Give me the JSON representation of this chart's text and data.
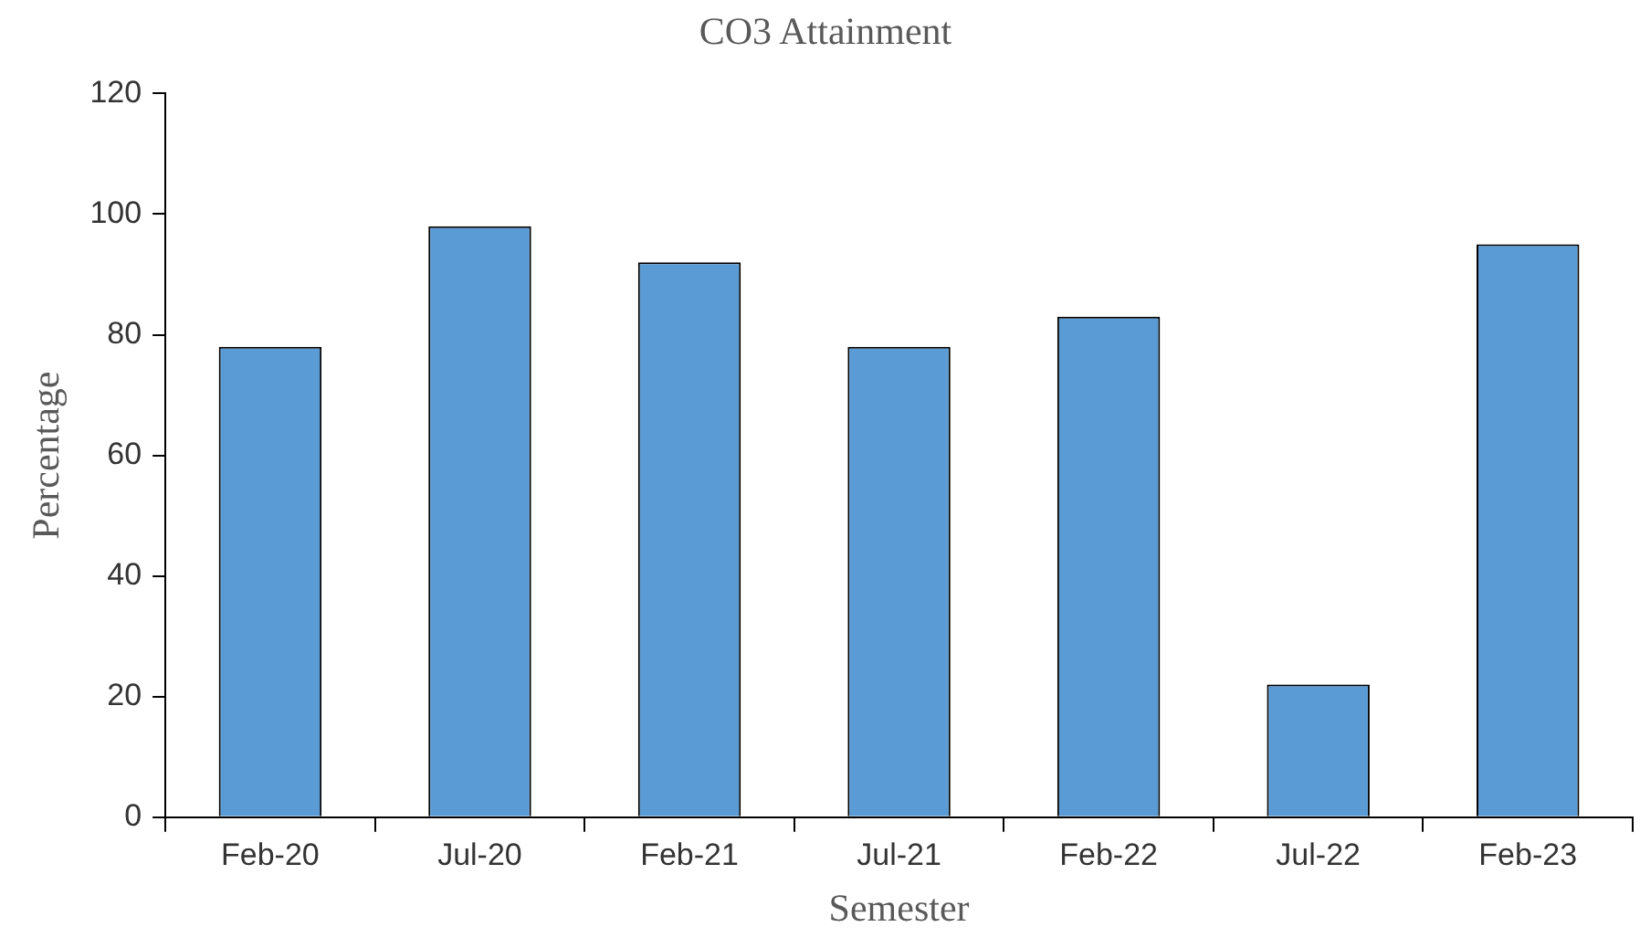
{
  "chart_data": {
    "type": "bar",
    "title": "CO3 Attainment",
    "xlabel": "Semester",
    "ylabel": "Percentage",
    "categories": [
      "Feb-20",
      "Jul-20",
      "Feb-21",
      "Jul-21",
      "Feb-22",
      "Jul-22",
      "Feb-23"
    ],
    "series": [
      {
        "color": "#5b9bd5",
        "values": [
          78,
          98,
          92,
          78,
          83,
          22,
          95
        ]
      }
    ],
    "ylim": [
      0,
      120
    ],
    "yticks": [
      0,
      20,
      40,
      60,
      80,
      100,
      120
    ]
  }
}
